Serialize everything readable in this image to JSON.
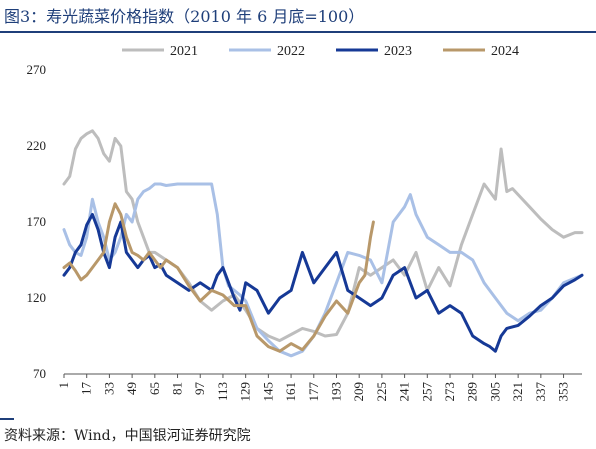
{
  "title": "图3：寿光蔬菜价格指数（2010 年 6 月底=100）",
  "source": "资料来源：Wind，中国银河证券研究院",
  "chart_data": {
    "type": "line",
    "title": "图3：寿光蔬菜价格指数（2010 年 6 月底=100）",
    "xlabel": "",
    "ylabel": "",
    "xlim": [
      1,
      366
    ],
    "ylim": [
      70,
      270
    ],
    "yticks": [
      70,
      120,
      170,
      220,
      270
    ],
    "xticks": [
      1,
      17,
      33,
      49,
      65,
      81,
      97,
      113,
      129,
      145,
      161,
      177,
      193,
      209,
      225,
      241,
      257,
      273,
      289,
      305,
      321,
      337,
      353
    ],
    "legend_position": "top",
    "grid": false,
    "series": [
      {
        "name": "2021",
        "color": "#bdbdbd",
        "x": [
          1,
          5,
          9,
          13,
          17,
          21,
          25,
          29,
          33,
          37,
          41,
          45,
          49,
          53,
          57,
          61,
          65,
          73,
          81,
          89,
          97,
          105,
          113,
          121,
          129,
          137,
          145,
          153,
          161,
          169,
          177,
          185,
          193,
          201,
          209,
          217,
          225,
          233,
          241,
          249,
          257,
          265,
          273,
          281,
          289,
          297,
          301,
          305,
          309,
          313,
          317,
          321,
          329,
          337,
          345,
          353,
          361,
          366
        ],
        "values": [
          195,
          200,
          218,
          225,
          228,
          230,
          225,
          215,
          210,
          225,
          220,
          190,
          185,
          170,
          160,
          150,
          150,
          145,
          140,
          130,
          118,
          112,
          118,
          122,
          112,
          100,
          95,
          92,
          96,
          100,
          98,
          95,
          96,
          110,
          140,
          135,
          140,
          145,
          135,
          150,
          125,
          140,
          128,
          155,
          175,
          195,
          190,
          185,
          218,
          190,
          192,
          188,
          180,
          172,
          165,
          160,
          163,
          163
        ]
      },
      {
        "name": "2022",
        "color": "#a9c0e6",
        "x": [
          1,
          5,
          9,
          13,
          17,
          21,
          25,
          29,
          33,
          37,
          41,
          45,
          49,
          53,
          57,
          61,
          65,
          69,
          73,
          81,
          89,
          97,
          105,
          109,
          113,
          117,
          121,
          125,
          129,
          137,
          145,
          153,
          161,
          169,
          177,
          185,
          193,
          201,
          209,
          217,
          225,
          233,
          241,
          245,
          249,
          257,
          265,
          273,
          281,
          289,
          297,
          305,
          313,
          321,
          329,
          337,
          345,
          353,
          361,
          366
        ],
        "values": [
          165,
          155,
          150,
          148,
          160,
          185,
          170,
          160,
          145,
          150,
          160,
          175,
          170,
          185,
          190,
          192,
          195,
          195,
          194,
          195,
          195,
          195,
          195,
          175,
          140,
          128,
          125,
          122,
          118,
          100,
          92,
          85,
          82,
          85,
          95,
          110,
          130,
          150,
          148,
          145,
          130,
          170,
          180,
          188,
          175,
          160,
          155,
          150,
          150,
          145,
          130,
          120,
          110,
          105,
          110,
          112,
          120,
          130,
          133,
          135
        ]
      },
      {
        "name": "2023",
        "color": "#163996",
        "x": [
          1,
          5,
          9,
          13,
          17,
          21,
          25,
          29,
          33,
          37,
          41,
          45,
          49,
          53,
          57,
          61,
          65,
          69,
          73,
          81,
          89,
          97,
          105,
          109,
          113,
          117,
          121,
          125,
          129,
          137,
          145,
          153,
          161,
          169,
          177,
          185,
          193,
          201,
          209,
          217,
          225,
          233,
          241,
          249,
          257,
          265,
          273,
          281,
          289,
          297,
          301,
          305,
          309,
          313,
          321,
          329,
          337,
          345,
          353,
          361,
          366
        ],
        "values": [
          135,
          140,
          150,
          155,
          168,
          175,
          165,
          150,
          140,
          160,
          170,
          150,
          145,
          140,
          145,
          148,
          140,
          142,
          135,
          130,
          125,
          130,
          125,
          135,
          140,
          130,
          120,
          112,
          130,
          125,
          110,
          120,
          125,
          150,
          130,
          140,
          150,
          125,
          120,
          115,
          120,
          135,
          140,
          120,
          125,
          110,
          115,
          110,
          95,
          90,
          88,
          85,
          95,
          100,
          102,
          108,
          115,
          120,
          128,
          132,
          135
        ]
      },
      {
        "name": "2024",
        "color": "#b8986a",
        "x": [
          1,
          5,
          9,
          13,
          17,
          21,
          25,
          29,
          33,
          37,
          41,
          45,
          49,
          53,
          57,
          61,
          65,
          69,
          73,
          81,
          89,
          97,
          105,
          113,
          121,
          129,
          137,
          145,
          153,
          161,
          169,
          177,
          185,
          193,
          201,
          205,
          209,
          213,
          217,
          219
        ],
        "values": [
          140,
          143,
          138,
          132,
          135,
          140,
          145,
          150,
          170,
          182,
          175,
          160,
          150,
          148,
          145,
          150,
          145,
          140,
          145,
          140,
          128,
          118,
          125,
          122,
          115,
          115,
          95,
          88,
          85,
          90,
          86,
          95,
          108,
          118,
          110,
          120,
          130,
          135,
          160,
          170
        ]
      }
    ]
  }
}
